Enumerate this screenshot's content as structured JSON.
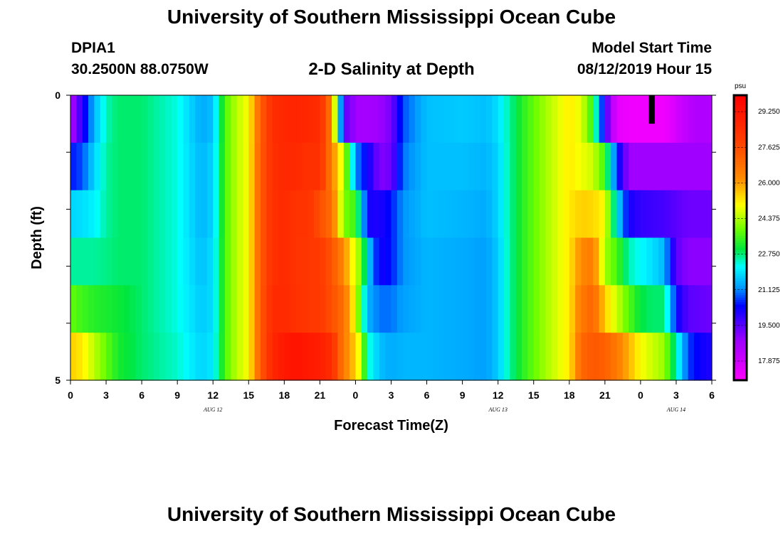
{
  "header": {
    "title": "University of Southern Mississippi Ocean Cube",
    "station": "DPIA1",
    "coordinates": "30.2500N 88.0750W",
    "start_label": "Model Start Time",
    "start_value": "08/12/2019 Hour 15"
  },
  "footer": {
    "title": "University of Southern Mississippi Ocean Cube"
  },
  "chart_data": {
    "type": "heatmap",
    "title": "2-D Salinity at Depth",
    "xlabel": "Forecast Time(Z)",
    "ylabel": "Depth (ft)",
    "x_tick_labels": [
      "0",
      "3",
      "6",
      "9",
      "12",
      "15",
      "18",
      "21",
      "0",
      "3",
      "6",
      "9",
      "12",
      "15",
      "18",
      "21",
      "0",
      "3",
      "6"
    ],
    "date_labels": [
      {
        "label": "AUG 12",
        "hour": 12
      },
      {
        "label": "AUG 13",
        "hour": 36
      },
      {
        "label": "AUG 14",
        "hour": 51
      }
    ],
    "x_range_hours": [
      0,
      54
    ],
    "y_range": [
      0,
      5
    ],
    "y_tick_labels": [
      "0",
      "5"
    ],
    "y_ticks": [
      0,
      1,
      2,
      3,
      4,
      5
    ],
    "depth_layers": [
      0.25,
      1.0,
      2.0,
      3.0,
      4.0,
      4.75
    ],
    "colorbar": {
      "unit": "psu",
      "range": [
        17.0,
        30.0
      ],
      "tick_values": [
        17.875,
        19.5,
        21.125,
        22.75,
        24.375,
        26.0,
        27.625,
        29.25
      ],
      "tick_labels": [
        "17.875",
        "19.500",
        "21.125",
        "22.750",
        "24.375",
        "26.000",
        "27.625",
        "29.250"
      ]
    },
    "key_hours": [
      0,
      1,
      2,
      3,
      4,
      6,
      9,
      11,
      12,
      13,
      14,
      15,
      16,
      17,
      18,
      19,
      20,
      21,
      22,
      23,
      24,
      24.5,
      25,
      26,
      27,
      28,
      30,
      33,
      35,
      36,
      37,
      38,
      40,
      42,
      43,
      44,
      45,
      46,
      47,
      48,
      49,
      50,
      51,
      52,
      53,
      54
    ],
    "layers": [
      [
        18.5,
        20,
        21.5,
        22.5,
        22.8,
        22.8,
        22.3,
        21.4,
        21.6,
        23.6,
        24.5,
        25,
        27.2,
        28.5,
        28.7,
        28.8,
        28.7,
        28.5,
        26.5,
        19.5,
        18.8,
        18.7,
        18.7,
        18.8,
        19.2,
        20.8,
        21.6,
        21.7,
        21.6,
        21.9,
        22.6,
        23.3,
        24.3,
        25.2,
        24.8,
        23.3,
        19.9,
        17.5,
        17.3,
        17.3,
        17.3,
        17.3,
        17.8,
        18.3,
        18.5,
        18.5
      ],
      [
        20.5,
        20.8,
        21.8,
        22.6,
        22.8,
        22.8,
        22.3,
        21.5,
        21.8,
        23.6,
        24.5,
        25,
        27.3,
        28.4,
        28.7,
        28.6,
        28.4,
        28.4,
        26.5,
        24.5,
        21.3,
        20.6,
        20.4,
        19.1,
        19.3,
        21,
        21.6,
        21.6,
        21.5,
        21.8,
        22.6,
        23.3,
        24.3,
        25.2,
        24.9,
        24.6,
        23.5,
        20.6,
        18.8,
        18.8,
        18.8,
        18.8,
        18.8,
        18.8,
        18.8,
        18.8
      ],
      [
        21.8,
        21.9,
        22.1,
        22.6,
        22.8,
        22.8,
        22.3,
        21.5,
        21.8,
        23.6,
        24.5,
        25,
        27.3,
        28.4,
        28.6,
        28.3,
        28.3,
        27.6,
        26.9,
        24,
        23.5,
        22,
        20.2,
        20.1,
        20.5,
        21.2,
        21.6,
        21.5,
        21.4,
        21.8,
        22.6,
        23.3,
        24.3,
        25.2,
        25.5,
        25.4,
        25,
        22,
        20.2,
        19.9,
        19.8,
        19.7,
        19.5,
        19.3,
        19.3,
        19.3
      ],
      [
        22.6,
        22.6,
        22.6,
        22.7,
        22.8,
        22.8,
        22.3,
        21.6,
        21.9,
        23.6,
        24.5,
        25,
        27.3,
        28.4,
        28.6,
        28.3,
        28.2,
        28.1,
        27.5,
        26.3,
        24.6,
        24,
        21.9,
        20.2,
        20.5,
        21.2,
        21.5,
        21.4,
        21.3,
        21.7,
        22.6,
        23.3,
        24.3,
        25.2,
        26.3,
        26.6,
        24.3,
        23.6,
        22.5,
        22.2,
        21.9,
        21.5,
        19.5,
        19,
        19,
        19
      ],
      [
        23.8,
        23.5,
        23.3,
        23.2,
        23.1,
        22.8,
        22.3,
        21.7,
        21.9,
        23.6,
        24.5,
        25,
        27.3,
        28.6,
        28.6,
        28.4,
        28.2,
        28.1,
        27.6,
        26.8,
        24.8,
        23.2,
        21.5,
        21,
        21,
        21.3,
        21.5,
        21.4,
        21.3,
        21.7,
        22.6,
        23.3,
        24.3,
        25.2,
        26.6,
        27.1,
        25.5,
        24.6,
        23.7,
        23,
        22.8,
        22.8,
        20.4,
        19.5,
        19.4,
        19.3
      ],
      [
        25.5,
        25.2,
        24.5,
        23.8,
        23.2,
        22.8,
        22.4,
        21.8,
        22,
        23.6,
        24.5,
        25,
        27.3,
        28.7,
        29.2,
        29.4,
        29.2,
        29.0,
        28.5,
        26.5,
        25.5,
        24.5,
        22.5,
        21.6,
        21.4,
        21.5,
        21.5,
        21.4,
        21.3,
        21.7,
        22.6,
        23.3,
        24.3,
        25.2,
        27,
        27.4,
        27.2,
        26.6,
        25.8,
        25,
        24.6,
        24.2,
        22.5,
        20.7,
        20.3,
        20.1
      ]
    ],
    "mask": {
      "hour_start": 48.7,
      "hour_end": 49.2,
      "depth_top": 0,
      "depth_bottom": 0.5
    }
  }
}
